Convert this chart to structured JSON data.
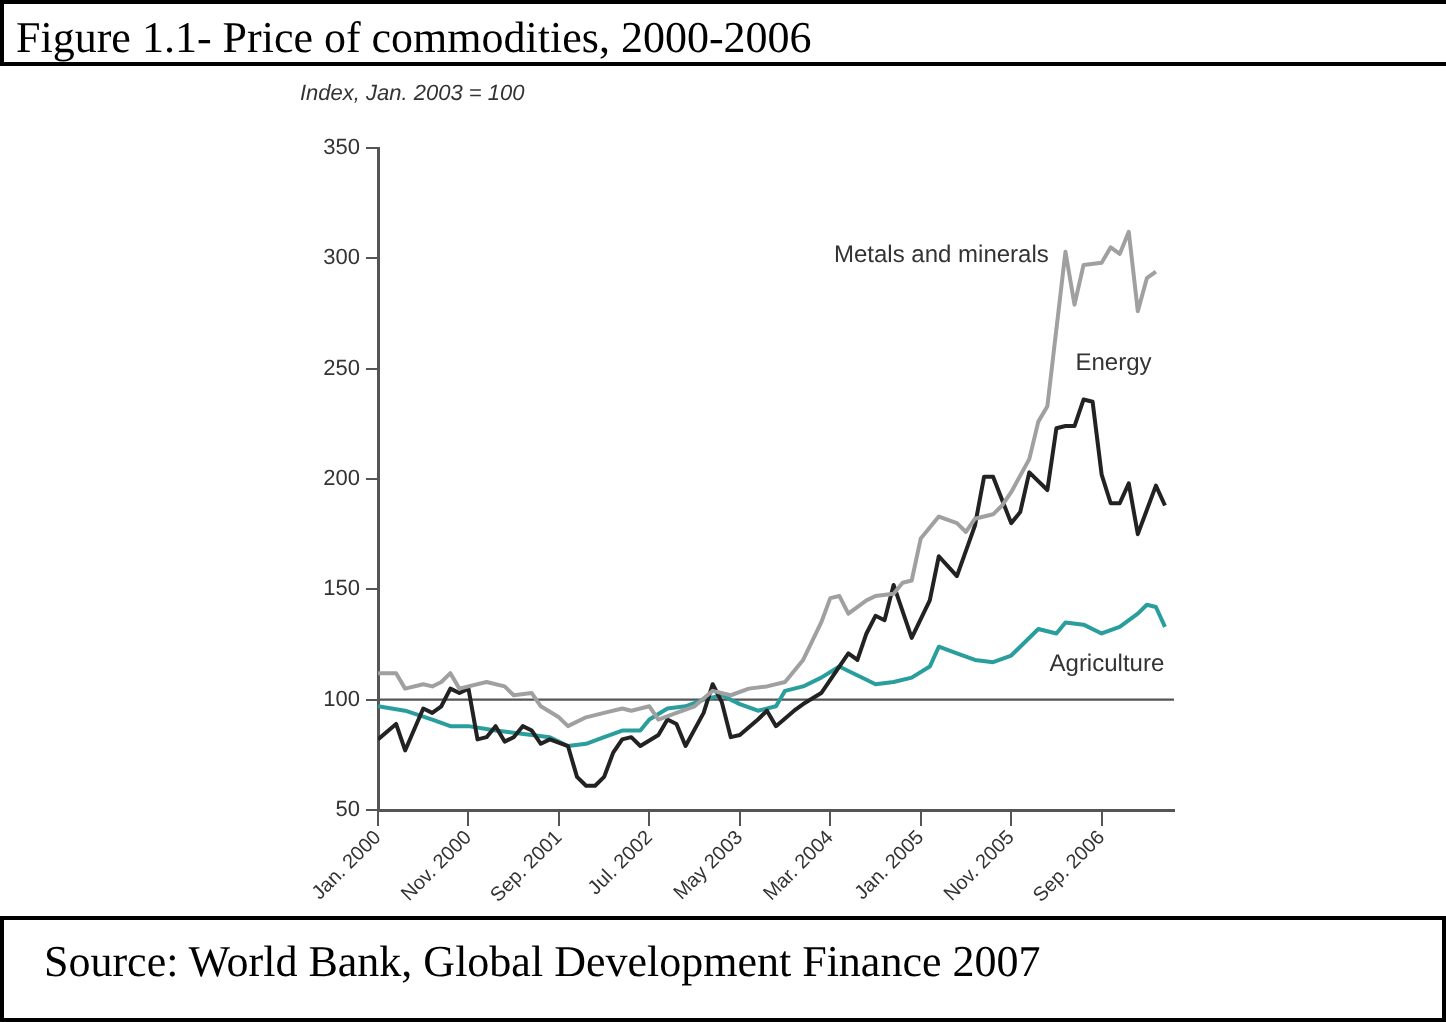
{
  "chart_data": {
    "type": "line",
    "title": "Figure 1.1- Price of commodities, 2000-2006",
    "ylabel": "Index, Jan. 2003 = 100",
    "annotations": [
      "Source: World Bank, Global Development Finance 2007"
    ],
    "xlim": [
      "2000-01",
      "2007-05"
    ],
    "xticks": [
      {
        "value": "2000-01",
        "label": "Jan. 2000"
      },
      {
        "value": "2000-11",
        "label": "Nov. 2000"
      },
      {
        "value": "2001-09",
        "label": "Sep. 2001"
      },
      {
        "value": "2002-07",
        "label": "Jul. 2002"
      },
      {
        "value": "2003-05",
        "label": "May 2003"
      },
      {
        "value": "2004-03",
        "label": "Mar. 2004"
      },
      {
        "value": "2005-01",
        "label": "Jan. 2005"
      },
      {
        "value": "2005-11",
        "label": "Nov. 2005"
      },
      {
        "value": "2006-09",
        "label": "Sep. 2006"
      }
    ],
    "ylim": [
      50,
      350
    ],
    "yticks": [
      50,
      100,
      150,
      200,
      250,
      300,
      350
    ],
    "grid": false,
    "legend": false,
    "marker": "none",
    "line_style": "solid",
    "ref_lines": [
      {
        "axis": "y",
        "value": 100,
        "color": "#555555"
      }
    ],
    "series": [
      {
        "name": "Metals and minerals",
        "color": "#a0a0a0",
        "x": [
          "2000-01",
          "2000-03",
          "2000-04",
          "2000-06",
          "2000-07",
          "2000-08",
          "2000-09",
          "2000-10",
          "2000-11",
          "2001-01",
          "2001-03",
          "2001-04",
          "2001-06",
          "2001-07",
          "2001-09",
          "2001-10",
          "2001-12",
          "2002-02",
          "2002-04",
          "2002-05",
          "2002-07",
          "2002-08",
          "2002-10",
          "2002-12",
          "2003-02",
          "2003-04",
          "2003-06",
          "2003-08",
          "2003-10",
          "2003-12",
          "2004-02",
          "2004-03",
          "2004-04",
          "2004-05",
          "2004-07",
          "2004-08",
          "2004-10",
          "2004-11",
          "2004-12",
          "2005-01",
          "2005-03",
          "2005-05",
          "2005-06",
          "2005-07",
          "2005-09",
          "2005-10",
          "2005-11",
          "2006-01",
          "2006-02",
          "2006-03",
          "2006-05",
          "2006-06",
          "2006-07",
          "2006-09",
          "2006-10",
          "2006-11",
          "2006-12",
          "2007-01",
          "2007-02",
          "2007-03"
        ],
        "values": [
          112,
          112,
          105,
          107,
          106,
          108,
          112,
          105,
          106,
          108,
          106,
          102,
          103,
          97,
          92,
          88,
          92,
          94,
          96,
          95,
          97,
          91,
          94,
          97,
          104,
          102,
          105,
          106,
          108,
          118,
          135,
          146,
          147,
          139,
          145,
          147,
          148,
          153,
          154,
          173,
          183,
          180,
          176,
          182,
          184,
          188,
          194,
          209,
          226,
          233,
          303,
          279,
          297,
          298,
          305,
          302,
          312,
          276,
          291,
          294
        ]
      },
      {
        "name": "Energy",
        "color": "#222222",
        "x": [
          "2000-01",
          "2000-03",
          "2000-04",
          "2000-06",
          "2000-07",
          "2000-08",
          "2000-09",
          "2000-10",
          "2000-11",
          "2000-12",
          "2001-01",
          "2001-02",
          "2001-03",
          "2001-04",
          "2001-05",
          "2001-06",
          "2001-07",
          "2001-08",
          "2001-10",
          "2001-11",
          "2001-12",
          "2002-01",
          "2002-02",
          "2002-03",
          "2002-04",
          "2002-05",
          "2002-06",
          "2002-08",
          "2002-09",
          "2002-10",
          "2002-11",
          "2003-01",
          "2003-02",
          "2003-03",
          "2003-04",
          "2003-05",
          "2003-07",
          "2003-08",
          "2003-09",
          "2003-11",
          "2003-12",
          "2004-02",
          "2004-03",
          "2004-05",
          "2004-06",
          "2004-07",
          "2004-08",
          "2004-09",
          "2004-10",
          "2004-12",
          "2005-02",
          "2005-03",
          "2005-05",
          "2005-07",
          "2005-08",
          "2005-09",
          "2005-11",
          "2005-12",
          "2006-01",
          "2006-03",
          "2006-04",
          "2006-05",
          "2006-06",
          "2006-07",
          "2006-08",
          "2006-09",
          "2006-10",
          "2006-11",
          "2006-12",
          "2007-01",
          "2007-03",
          "2007-04"
        ],
        "values": [
          82,
          89,
          77,
          96,
          94,
          97,
          105,
          103,
          105,
          82,
          83,
          88,
          81,
          83,
          88,
          86,
          80,
          82,
          79,
          65,
          61,
          61,
          65,
          76,
          82,
          83,
          79,
          84,
          91,
          89,
          79,
          94,
          107,
          99,
          83,
          84,
          91,
          95,
          88,
          95,
          98,
          103,
          109,
          121,
          118,
          130,
          138,
          136,
          152,
          128,
          145,
          165,
          156,
          179,
          201,
          201,
          180,
          185,
          203,
          195,
          223,
          224,
          224,
          236,
          235,
          202,
          189,
          189,
          198,
          175,
          197,
          188
        ]
      },
      {
        "name": "Agriculture",
        "color": "#2a9d9d",
        "x": [
          "2000-01",
          "2000-04",
          "2000-07",
          "2000-09",
          "2000-11",
          "2001-02",
          "2001-04",
          "2001-06",
          "2001-08",
          "2001-10",
          "2001-12",
          "2002-02",
          "2002-04",
          "2002-06",
          "2002-07",
          "2002-09",
          "2002-11",
          "2003-01",
          "2003-03",
          "2003-05",
          "2003-07",
          "2003-09",
          "2003-10",
          "2003-12",
          "2004-02",
          "2004-04",
          "2004-05",
          "2004-07",
          "2004-08",
          "2004-10",
          "2004-12",
          "2005-02",
          "2005-03",
          "2005-05",
          "2005-07",
          "2005-09",
          "2005-11",
          "2005-12",
          "2006-02",
          "2006-04",
          "2006-05",
          "2006-07",
          "2006-09",
          "2006-11",
          "2007-01",
          "2007-02",
          "2007-03",
          "2007-04"
        ],
        "values": [
          97,
          95,
          91,
          88,
          88,
          86,
          85,
          84,
          83,
          79,
          80,
          83,
          86,
          86,
          91,
          96,
          97,
          100,
          102,
          98,
          95,
          97,
          104,
          106,
          110,
          115,
          113,
          109,
          107,
          108,
          110,
          115,
          124,
          121,
          118,
          117,
          120,
          124,
          132,
          130,
          135,
          134,
          130,
          133,
          139,
          143,
          142,
          133
        ]
      }
    ]
  }
}
